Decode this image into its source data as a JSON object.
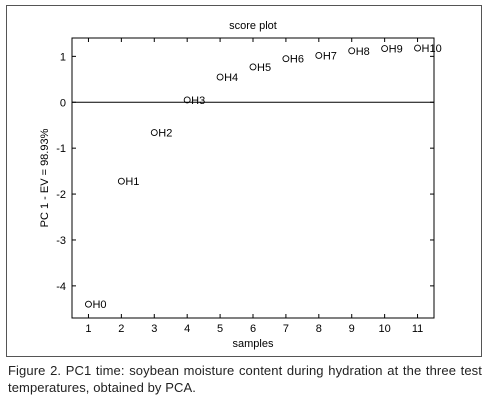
{
  "chart_data": {
    "type": "scatter",
    "title": "score plot",
    "xlabel": "samples",
    "ylabel": "PC 1 - EV = 98.93%",
    "xlim": [
      0.5,
      11.5
    ],
    "ylim": [
      -4.7,
      1.4
    ],
    "xticks": [
      1,
      2,
      3,
      4,
      5,
      6,
      7,
      8,
      9,
      10,
      11
    ],
    "yticks": [
      -4,
      -3,
      -2,
      -1,
      0,
      1
    ],
    "zero_line": true,
    "grid": false,
    "marker": "open-circle",
    "points": [
      {
        "label": "H0",
        "x": 1,
        "y": -4.4
      },
      {
        "label": "H1",
        "x": 2,
        "y": -1.72
      },
      {
        "label": "H2",
        "x": 3,
        "y": -0.66
      },
      {
        "label": "H3",
        "x": 4,
        "y": 0.05
      },
      {
        "label": "H4",
        "x": 5,
        "y": 0.55
      },
      {
        "label": "H5",
        "x": 6,
        "y": 0.77
      },
      {
        "label": "H6",
        "x": 7,
        "y": 0.95
      },
      {
        "label": "H7",
        "x": 8,
        "y": 1.02
      },
      {
        "label": "H8",
        "x": 9,
        "y": 1.12
      },
      {
        "label": "H9",
        "x": 10,
        "y": 1.17
      },
      {
        "label": "H10",
        "x": 11,
        "y": 1.18
      }
    ]
  },
  "caption": "Figure 2. PC1 time: soybean moisture content during hydration at the three test temperatures, obtained by PCA."
}
